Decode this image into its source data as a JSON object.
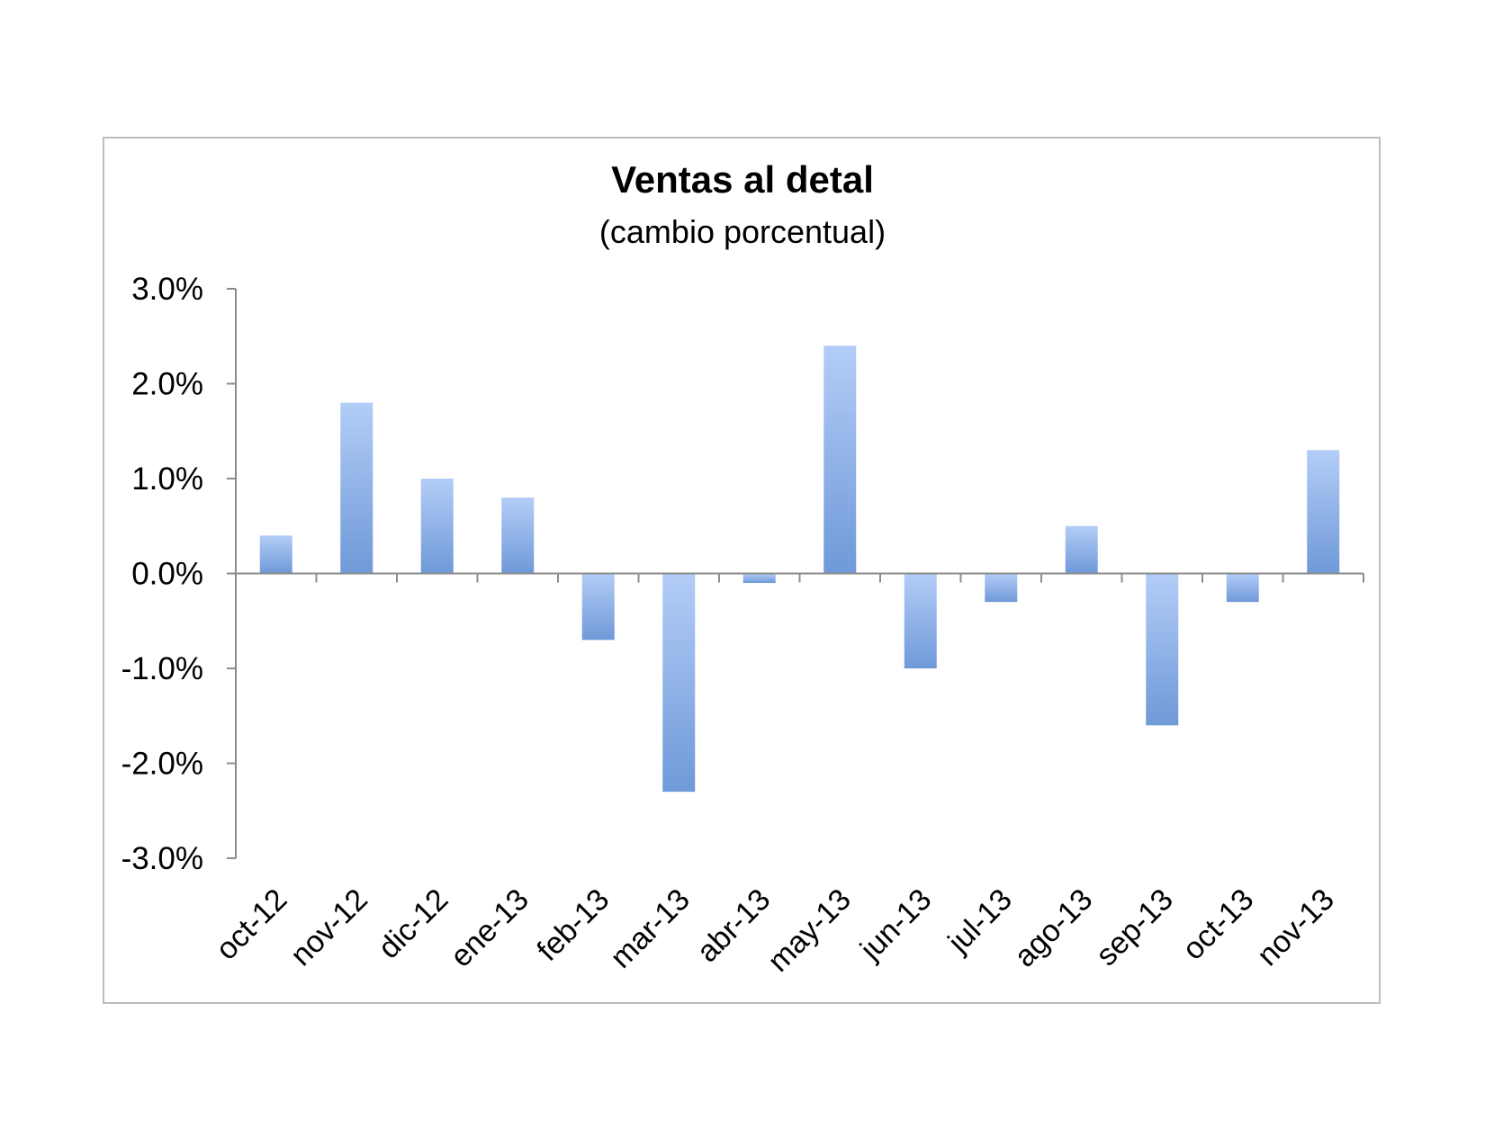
{
  "chart_data": {
    "type": "bar",
    "title": "Ventas al detal",
    "subtitle": "(cambio porcentual)",
    "xlabel": "",
    "ylabel": "",
    "ylim": [
      -3.0,
      3.0
    ],
    "yticks": [
      3.0,
      2.0,
      1.0,
      0.0,
      -1.0,
      -2.0,
      -3.0
    ],
    "ytick_labels": [
      "3.0%",
      "2.0%",
      "1.0%",
      "0.0%",
      "-1.0%",
      "-2.0%",
      "-3.0%"
    ],
    "categories": [
      "oct-12",
      "nov-12",
      "dic-12",
      "ene-13",
      "feb-13",
      "mar-13",
      "abr-13",
      "may-13",
      "jun-13",
      "jul-13",
      "ago-13",
      "sep-13",
      "oct-13",
      "nov-13"
    ],
    "values": [
      0.4,
      1.8,
      1.0,
      0.8,
      -0.7,
      -2.3,
      -0.1,
      2.4,
      -1.0,
      -0.3,
      0.5,
      -1.6,
      -0.3,
      1.3
    ],
    "unit": "%",
    "grid": false,
    "legend": "none",
    "bar_color_top": "#b3cdf7",
    "bar_color_bottom": "#6f99d8"
  }
}
